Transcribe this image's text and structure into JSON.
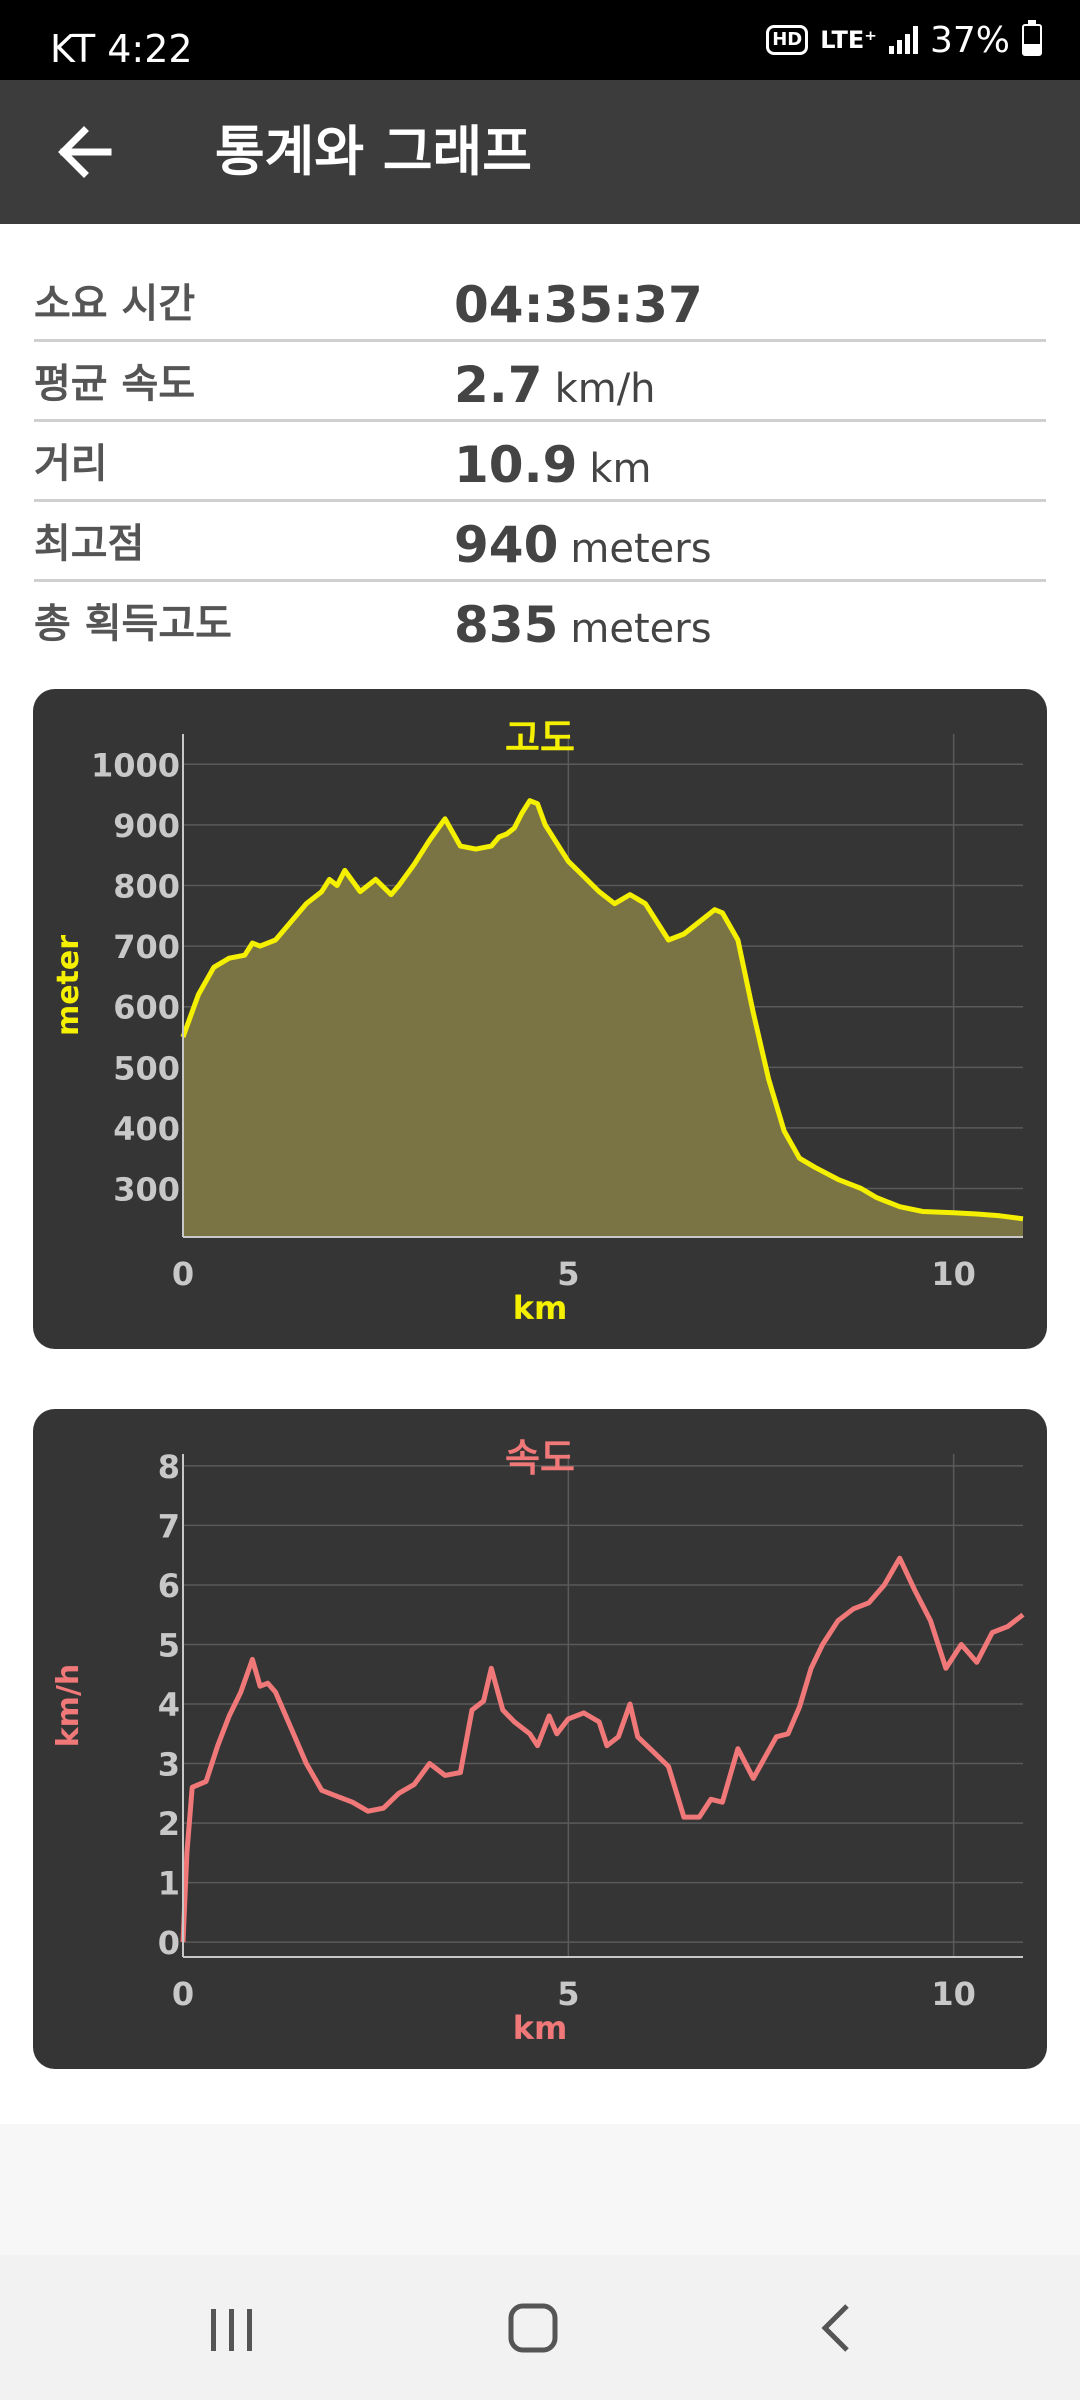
{
  "status_bar": {
    "carrier_time": "KT 4:22",
    "hd": "HD",
    "network": "LTE⁺",
    "battery_percent": "37%",
    "battery_level": 0.37
  },
  "app_bar": {
    "back_icon": "arrow-left-icon",
    "title": "통계와 그래프"
  },
  "stats": [
    {
      "label": "소요 시간",
      "value": "04:35:37",
      "unit": ""
    },
    {
      "label": "평균 속도",
      "value": "2.7",
      "unit": "km/h"
    },
    {
      "label": "거리",
      "value": "10.9",
      "unit": "km"
    },
    {
      "label": "최고점",
      "value": "940",
      "unit": "meters"
    },
    {
      "label": "총 획득고도",
      "value": "835",
      "unit": "meters"
    }
  ],
  "chart_data": [
    {
      "type": "area",
      "title": "고도",
      "xlabel": "km",
      "ylabel": "meter",
      "xlim": [
        0,
        10.9
      ],
      "ylim": [
        220,
        1050
      ],
      "xticks": [
        0,
        5,
        10
      ],
      "yticks": [
        300,
        400,
        500,
        600,
        700,
        800,
        900,
        1000
      ],
      "grid": true,
      "color": "#f5f000",
      "fill_color": "#7a7445",
      "x": [
        0,
        0.2,
        0.4,
        0.6,
        0.8,
        0.9,
        1.0,
        1.2,
        1.4,
        1.6,
        1.8,
        1.9,
        2.0,
        2.1,
        2.3,
        2.5,
        2.7,
        2.8,
        3.0,
        3.2,
        3.4,
        3.6,
        3.8,
        4.0,
        4.1,
        4.2,
        4.3,
        4.4,
        4.5,
        4.6,
        4.7,
        5.0,
        5.2,
        5.4,
        5.6,
        5.8,
        6.0,
        6.2,
        6.3,
        6.5,
        6.7,
        6.9,
        7.0,
        7.2,
        7.4,
        7.6,
        7.8,
        8.0,
        8.2,
        8.5,
        8.8,
        9.0,
        9.3,
        9.6,
        10.0,
        10.3,
        10.6,
        10.9
      ],
      "y": [
        550,
        620,
        665,
        680,
        685,
        705,
        700,
        710,
        740,
        770,
        790,
        810,
        800,
        825,
        790,
        810,
        785,
        800,
        835,
        875,
        910,
        865,
        860,
        865,
        880,
        885,
        895,
        920,
        940,
        935,
        900,
        840,
        815,
        790,
        770,
        785,
        770,
        730,
        710,
        720,
        740,
        760,
        755,
        710,
        590,
        480,
        395,
        350,
        335,
        315,
        300,
        285,
        270,
        262,
        260,
        258,
        255,
        250
      ]
    },
    {
      "type": "line",
      "title": "속도",
      "xlabel": "km",
      "ylabel": "km/h",
      "xlim": [
        0,
        10.9
      ],
      "ylim": [
        -0.25,
        8.2
      ],
      "xticks": [
        0,
        5,
        10
      ],
      "yticks": [
        0,
        1,
        2,
        3,
        4,
        5,
        6,
        7,
        8
      ],
      "grid": true,
      "color": "#f07878",
      "x": [
        0,
        0.05,
        0.12,
        0.3,
        0.45,
        0.6,
        0.75,
        0.9,
        1.0,
        1.1,
        1.2,
        1.4,
        1.6,
        1.8,
        2.0,
        2.2,
        2.4,
        2.6,
        2.8,
        3.0,
        3.2,
        3.4,
        3.6,
        3.75,
        3.9,
        4.0,
        4.15,
        4.3,
        4.5,
        4.6,
        4.75,
        4.85,
        5.0,
        5.2,
        5.4,
        5.5,
        5.65,
        5.8,
        5.9,
        6.1,
        6.3,
        6.5,
        6.7,
        6.85,
        7.0,
        7.2,
        7.4,
        7.55,
        7.7,
        7.85,
        8.0,
        8.15,
        8.3,
        8.5,
        8.7,
        8.9,
        9.1,
        9.3,
        9.5,
        9.7,
        9.9,
        10.1,
        10.3,
        10.5,
        10.7,
        10.9
      ],
      "y": [
        0,
        1.5,
        2.6,
        2.7,
        3.3,
        3.8,
        4.2,
        4.75,
        4.3,
        4.35,
        4.2,
        3.6,
        3.0,
        2.55,
        2.45,
        2.35,
        2.2,
        2.25,
        2.5,
        2.65,
        3.0,
        2.8,
        2.85,
        3.9,
        4.05,
        4.6,
        3.9,
        3.7,
        3.5,
        3.3,
        3.8,
        3.5,
        3.75,
        3.85,
        3.7,
        3.3,
        3.45,
        4.0,
        3.45,
        3.2,
        2.95,
        2.1,
        2.1,
        2.4,
        2.35,
        3.25,
        2.75,
        3.1,
        3.45,
        3.5,
        3.95,
        4.6,
        5.0,
        5.4,
        5.6,
        5.7,
        6.0,
        6.45,
        5.9,
        5.4,
        4.6,
        5.0,
        4.7,
        5.2,
        5.3,
        5.5
      ]
    }
  ],
  "nav_bar": {
    "recents_icon": "recent-apps-icon",
    "home_icon": "home-icon",
    "back_icon": "back-chevron-icon"
  }
}
